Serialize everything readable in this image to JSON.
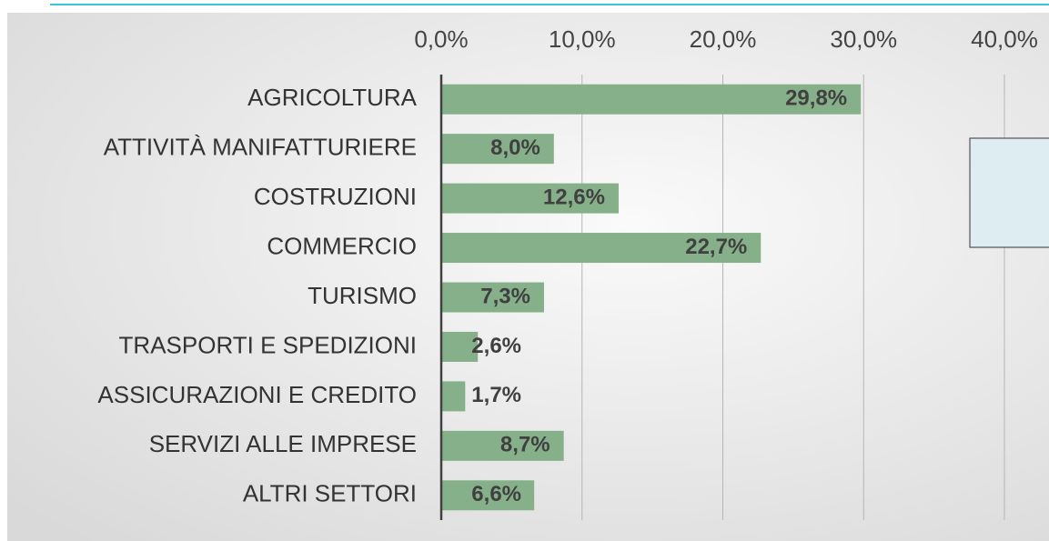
{
  "chart_data": {
    "type": "hbar",
    "categories": [
      "AGRICOLTURA",
      "ATTIVITÀ MANIFATTURIERE",
      "COSTRUZIONI",
      "COMMERCIO",
      "TURISMO",
      "TRASPORTI E SPEDIZIONI",
      "ASSICURAZIONI E CREDITO",
      "SERVIZI ALLE IMPRESE",
      "ALTRI SETTORI"
    ],
    "values": [
      29.8,
      8.0,
      12.6,
      22.7,
      7.3,
      2.6,
      1.7,
      8.7,
      6.6
    ],
    "value_labels": [
      "29,8%",
      "8,0%",
      "12,6%",
      "22,7%",
      "7,3%",
      "2,6%",
      "1,7%",
      "8,7%",
      "6,6%"
    ],
    "color": "#86b08a",
    "xlim": [
      0,
      40
    ],
    "xticks": [
      {
        "value": 0,
        "label": "0,0%"
      },
      {
        "value": 10,
        "label": "10,0%"
      },
      {
        "value": 20,
        "label": "20,0%"
      },
      {
        "value": 30,
        "label": "30,0%"
      },
      {
        "value": 40,
        "label": "40,0%"
      }
    ],
    "grid": true
  }
}
